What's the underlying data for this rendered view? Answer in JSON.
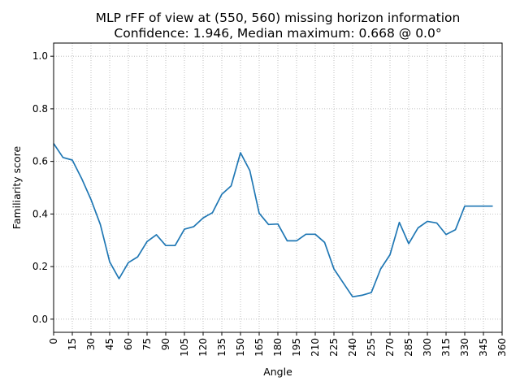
{
  "chart_data": {
    "type": "line",
    "title": "MLP rFF of view at (550, 560) missing horizon information",
    "subtitle": "Confidence: 1.946, Median maximum: 0.668 @ 0.0°",
    "xlabel": "Angle",
    "ylabel": "Familiarity score",
    "xlim": [
      0,
      360
    ],
    "ylim": [
      -0.05,
      1.05
    ],
    "grid": true,
    "x_ticks": [
      "0",
      "15",
      "30",
      "45",
      "60",
      "75",
      "90",
      "105",
      "120",
      "135",
      "150",
      "165",
      "180",
      "195",
      "210",
      "225",
      "240",
      "255",
      "270",
      "285",
      "300",
      "315",
      "330",
      "345",
      "360"
    ],
    "y_ticks": [
      "0.0",
      "0.2",
      "0.4",
      "0.6",
      "0.8",
      "1.0"
    ],
    "series": [
      {
        "color": "#1f77b4",
        "x": [
          0,
          7.5,
          15,
          22.5,
          30,
          37.5,
          45,
          52.5,
          60,
          67.5,
          75,
          82.5,
          90,
          97.5,
          105,
          112.5,
          120,
          127.5,
          135,
          142.5,
          150,
          157.5,
          165,
          172.5,
          180,
          187.5,
          195,
          202.5,
          210,
          217.5,
          225,
          232.5,
          240,
          247.5,
          255,
          262.5,
          270,
          277.5,
          285,
          292.5,
          300,
          307.5,
          315,
          322.5,
          330,
          337.5,
          345,
          352.5
        ],
        "y": [
          0.668,
          0.615,
          0.605,
          0.535,
          0.455,
          0.36,
          0.218,
          0.154,
          0.215,
          0.237,
          0.295,
          0.321,
          0.28,
          0.28,
          0.342,
          0.352,
          0.385,
          0.405,
          0.475,
          0.507,
          0.633,
          0.565,
          0.403,
          0.36,
          0.362,
          0.298,
          0.298,
          0.323,
          0.323,
          0.292,
          0.191,
          0.138,
          0.085,
          0.091,
          0.101,
          0.191,
          0.245,
          0.368,
          0.287,
          0.347,
          0.372,
          0.366,
          0.322,
          0.34,
          0.43,
          0.43,
          0.43,
          0.43
        ]
      }
    ]
  }
}
